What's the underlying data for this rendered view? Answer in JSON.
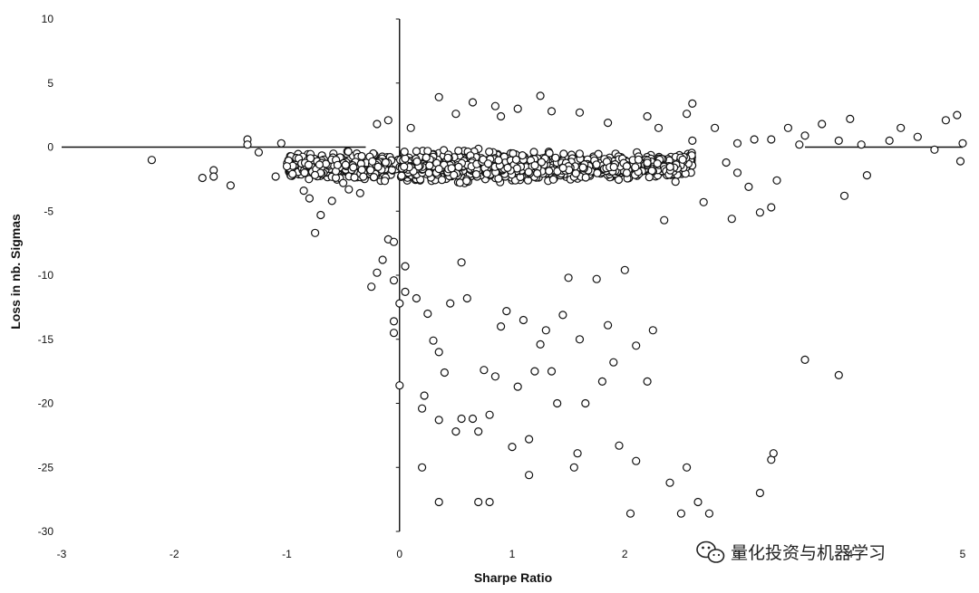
{
  "chart_data": {
    "type": "scatter",
    "title": "",
    "xlabel": "Sharpe Ratio",
    "ylabel": "Loss in nb. Sigmas",
    "xlim": [
      -3,
      5
    ],
    "ylim": [
      -30,
      10
    ],
    "x_ticks": [
      "-3",
      "-2",
      "-1",
      "0",
      "1",
      "2",
      "3",
      "4",
      "5"
    ],
    "y_ticks": [
      "10",
      "5",
      "0",
      "-5",
      "-10",
      "-15",
      "-20",
      "-25",
      "-30"
    ],
    "grid": false,
    "legend": "none",
    "marker": "hollow-circle",
    "colors": {
      "marker_edge": "#111111",
      "marker_fill": "#ffffff",
      "axis": "#111111"
    },
    "series": [
      {
        "points": [
          [
            -2.2,
            -1.0
          ],
          [
            -1.75,
            -2.4
          ],
          [
            -1.65,
            -1.8
          ],
          [
            -1.65,
            -2.3
          ],
          [
            -1.5,
            -3.0
          ],
          [
            -1.35,
            0.6
          ],
          [
            -1.35,
            0.2
          ],
          [
            -1.25,
            -0.4
          ],
          [
            -1.1,
            -2.3
          ],
          [
            -1.05,
            0.3
          ],
          [
            -1.0,
            -1.5
          ],
          [
            -0.95,
            -2.1
          ],
          [
            -0.85,
            -3.4
          ],
          [
            -0.8,
            -4.0
          ],
          [
            -0.75,
            -6.7
          ],
          [
            -0.7,
            -5.3
          ],
          [
            -0.6,
            -4.2
          ],
          [
            -0.55,
            -1.4
          ],
          [
            -0.5,
            -2.8
          ],
          [
            -0.45,
            -3.3
          ],
          [
            -0.35,
            -3.6
          ],
          [
            -0.25,
            -10.9
          ],
          [
            -0.2,
            -9.8
          ],
          [
            -0.15,
            -8.8
          ],
          [
            -0.1,
            -7.2
          ],
          [
            -0.05,
            -7.4
          ],
          [
            -0.05,
            -13.6
          ],
          [
            -0.05,
            -14.5
          ],
          [
            -0.05,
            -10.4
          ],
          [
            0.0,
            -12.2
          ],
          [
            0.0,
            -18.6
          ],
          [
            0.05,
            -11.3
          ],
          [
            0.05,
            -9.3
          ],
          [
            0.15,
            -11.8
          ],
          [
            0.2,
            -20.4
          ],
          [
            0.2,
            -25.0
          ],
          [
            0.22,
            -19.4
          ],
          [
            0.25,
            -13.0
          ],
          [
            0.3,
            -15.1
          ],
          [
            0.35,
            -21.3
          ],
          [
            0.35,
            -27.7
          ],
          [
            0.35,
            -16.0
          ],
          [
            0.4,
            -17.6
          ],
          [
            0.45,
            -12.2
          ],
          [
            0.5,
            -22.2
          ],
          [
            0.55,
            -9.0
          ],
          [
            0.55,
            -21.2
          ],
          [
            0.6,
            -11.8
          ],
          [
            0.65,
            -21.2
          ],
          [
            0.7,
            -22.2
          ],
          [
            0.7,
            -27.7
          ],
          [
            0.75,
            -17.4
          ],
          [
            0.8,
            -27.7
          ],
          [
            0.8,
            -20.9
          ],
          [
            0.85,
            -17.9
          ],
          [
            0.9,
            -14.0
          ],
          [
            0.95,
            -12.8
          ],
          [
            1.0,
            -23.4
          ],
          [
            1.05,
            -18.7
          ],
          [
            1.1,
            -13.5
          ],
          [
            1.15,
            -25.6
          ],
          [
            1.15,
            -22.8
          ],
          [
            1.2,
            -17.5
          ],
          [
            1.25,
            -15.4
          ],
          [
            1.3,
            -14.3
          ],
          [
            1.35,
            -17.5
          ],
          [
            1.4,
            -20.0
          ],
          [
            1.45,
            -13.1
          ],
          [
            1.5,
            -10.2
          ],
          [
            1.55,
            -25.0
          ],
          [
            1.58,
            -23.9
          ],
          [
            1.6,
            -15.0
          ],
          [
            1.65,
            -20.0
          ],
          [
            1.75,
            -10.3
          ],
          [
            1.8,
            -18.3
          ],
          [
            1.85,
            -13.9
          ],
          [
            1.9,
            -16.8
          ],
          [
            1.95,
            -23.3
          ],
          [
            2.0,
            -9.6
          ],
          [
            2.05,
            -28.6
          ],
          [
            2.1,
            -24.5
          ],
          [
            2.1,
            -15.5
          ],
          [
            2.2,
            -18.3
          ],
          [
            2.25,
            -14.3
          ],
          [
            2.4,
            -26.2
          ],
          [
            2.5,
            -28.6
          ],
          [
            2.55,
            -25.0
          ],
          [
            2.65,
            -27.7
          ],
          [
            2.75,
            -28.6
          ],
          [
            3.2,
            -27.0
          ],
          [
            3.3,
            -24.4
          ],
          [
            3.32,
            -23.9
          ],
          [
            3.6,
            -16.6
          ],
          [
            3.9,
            -17.8
          ],
          [
            3.95,
            -3.8
          ],
          [
            4.15,
            -2.2
          ],
          [
            3.75,
            1.8
          ],
          [
            4.0,
            2.2
          ],
          [
            4.45,
            1.5
          ],
          [
            4.6,
            0.8
          ],
          [
            4.85,
            2.1
          ],
          [
            4.95,
            2.5
          ],
          [
            5.0,
            0.3
          ],
          [
            4.98,
            -1.1
          ],
          [
            4.75,
            -0.2
          ],
          [
            4.35,
            0.5
          ],
          [
            4.1,
            0.2
          ],
          [
            3.9,
            0.5
          ],
          [
            3.55,
            0.2
          ],
          [
            3.3,
            0.6
          ],
          [
            3.0,
            0.3
          ],
          [
            2.8,
            1.5
          ],
          [
            2.55,
            2.6
          ],
          [
            2.6,
            3.4
          ],
          [
            2.2,
            2.4
          ],
          [
            1.85,
            1.9
          ],
          [
            1.35,
            2.8
          ],
          [
            1.25,
            4.0
          ],
          [
            0.35,
            3.9
          ],
          [
            0.65,
            3.5
          ],
          [
            0.85,
            3.2
          ],
          [
            -0.2,
            1.8
          ],
          [
            -0.1,
            2.1
          ],
          [
            0.1,
            1.5
          ],
          [
            0.5,
            2.6
          ],
          [
            0.9,
            2.4
          ],
          [
            1.05,
            3.0
          ],
          [
            1.6,
            2.7
          ],
          [
            2.3,
            1.5
          ],
          [
            2.6,
            0.5
          ],
          [
            3.15,
            0.6
          ],
          [
            2.9,
            -1.2
          ],
          [
            3.0,
            -2.0
          ],
          [
            3.1,
            -3.1
          ],
          [
            3.35,
            -2.6
          ],
          [
            3.45,
            1.5
          ],
          [
            3.6,
            0.9
          ],
          [
            2.45,
            -2.7
          ],
          [
            2.7,
            -4.3
          ],
          [
            2.95,
            -5.6
          ],
          [
            3.2,
            -5.1
          ],
          [
            3.3,
            -4.7
          ],
          [
            2.35,
            -5.7
          ]
        ]
      }
    ],
    "dense_cluster": {
      "x_range": [
        -1.0,
        2.6
      ],
      "y_range": [
        -6.5,
        1.8
      ]
    },
    "baseline_segments": [
      {
        "x_from": -3.0,
        "x_to": -0.3,
        "y": 0
      },
      {
        "x_from": 3.6,
        "x_to": 5.0,
        "y": 0
      }
    ]
  },
  "watermark": {
    "icon": "wechat-icon",
    "text": "量化投资与机器学习"
  }
}
